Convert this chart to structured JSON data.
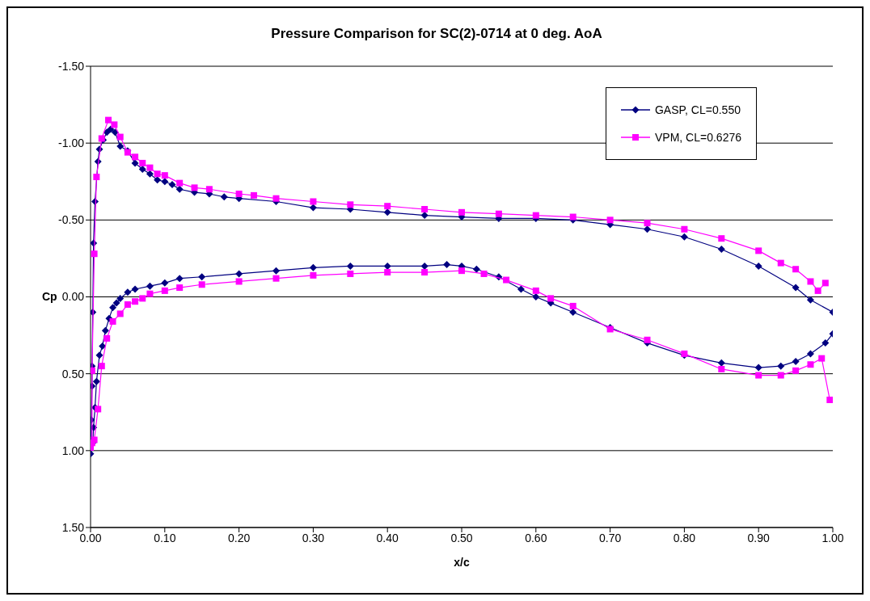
{
  "chart_data": {
    "type": "line",
    "title": "Pressure Comparison for SC(2)-0714 at 0 deg. AoA",
    "xlabel": "x/c",
    "ylabel": "Cp",
    "xlim": [
      0,
      1
    ],
    "xticks": [
      {
        "value": 0,
        "label": "0.00"
      },
      {
        "value": 0.1,
        "label": "0.10"
      },
      {
        "value": 0.2,
        "label": "0.20"
      },
      {
        "value": 0.3,
        "label": "0.30"
      },
      {
        "value": 0.4,
        "label": "0.40"
      },
      {
        "value": 0.5,
        "label": "0.50"
      },
      {
        "value": 0.6,
        "label": "0.60"
      },
      {
        "value": 0.7,
        "label": "0.70"
      },
      {
        "value": 0.8,
        "label": "0.80"
      },
      {
        "value": 0.9,
        "label": "0.90"
      },
      {
        "value": 1,
        "label": "1.00"
      }
    ],
    "ylim": [
      1.5,
      -1.5
    ],
    "yticks": [
      {
        "value": 1.5,
        "label": "1.50"
      },
      {
        "value": 1,
        "label": "1.00"
      },
      {
        "value": 0.5,
        "label": "0.50"
      },
      {
        "value": 0,
        "label": "0.00"
      },
      {
        "value": -0.5,
        "label": "-0.50"
      },
      {
        "value": -1,
        "label": "-1.00"
      },
      {
        "value": -1.5,
        "label": "-1.50"
      }
    ],
    "grid": "y",
    "legend": "top right",
    "line_style": "solid",
    "series": [
      {
        "name": "GASP, CL=0.550",
        "color": "#000080",
        "marker": "diamond",
        "x": [
          1.0,
          0.97,
          0.95,
          0.9,
          0.85,
          0.8,
          0.75,
          0.7,
          0.65,
          0.6,
          0.55,
          0.5,
          0.45,
          0.4,
          0.35,
          0.3,
          0.25,
          0.2,
          0.18,
          0.16,
          0.14,
          0.12,
          0.11,
          0.1,
          0.09,
          0.08,
          0.07,
          0.06,
          0.05,
          0.04,
          0.033,
          0.027,
          0.022,
          0.017,
          0.012,
          0.01,
          0.006,
          0.004,
          0.003,
          0.002,
          0.002,
          0.001,
          0.0,
          0.003,
          0.004,
          0.006,
          0.008,
          0.012,
          0.016,
          0.02,
          0.025,
          0.03,
          0.035,
          0.04,
          0.05,
          0.06,
          0.08,
          0.1,
          0.12,
          0.15,
          0.2,
          0.25,
          0.3,
          0.35,
          0.4,
          0.45,
          0.48,
          0.5,
          0.52,
          0.55,
          0.58,
          0.6,
          0.62,
          0.65,
          0.7,
          0.75,
          0.8,
          0.85,
          0.9,
          0.93,
          0.95,
          0.97,
          0.99,
          1.0
        ],
        "values": [
          0.1,
          0.02,
          -0.06,
          -0.2,
          -0.31,
          -0.39,
          -0.44,
          -0.47,
          -0.5,
          -0.51,
          -0.51,
          -0.52,
          -0.53,
          -0.55,
          -0.57,
          -0.58,
          -0.62,
          -0.64,
          -0.65,
          -0.67,
          -0.68,
          -0.7,
          -0.73,
          -0.75,
          -0.76,
          -0.8,
          -0.83,
          -0.87,
          -0.95,
          -0.98,
          -1.07,
          -1.09,
          -1.07,
          -1.02,
          -0.96,
          -0.88,
          -0.62,
          -0.35,
          0.1,
          0.45,
          0.58,
          0.8,
          1.02,
          0.95,
          0.85,
          0.72,
          0.55,
          0.38,
          0.32,
          0.22,
          0.14,
          0.07,
          0.04,
          0.01,
          -0.03,
          -0.05,
          -0.07,
          -0.09,
          -0.12,
          -0.13,
          -0.15,
          -0.17,
          -0.19,
          -0.2,
          -0.2,
          -0.2,
          -0.21,
          -0.2,
          -0.18,
          -0.13,
          -0.05,
          0.0,
          0.04,
          0.1,
          0.2,
          0.3,
          0.38,
          0.43,
          0.46,
          0.45,
          0.42,
          0.37,
          0.3,
          0.24
        ]
      },
      {
        "name": "VPM, CL=0.6276",
        "color": "#ff00ff",
        "marker": "square",
        "x": [
          0.99,
          0.98,
          0.97,
          0.95,
          0.93,
          0.9,
          0.85,
          0.8,
          0.75,
          0.7,
          0.65,
          0.6,
          0.55,
          0.5,
          0.45,
          0.4,
          0.35,
          0.3,
          0.25,
          0.22,
          0.2,
          0.16,
          0.14,
          0.12,
          0.1,
          0.09,
          0.08,
          0.07,
          0.06,
          0.05,
          0.04,
          0.032,
          0.024,
          0.015,
          0.008,
          0.005,
          0.002,
          0.002,
          0.0,
          0.005,
          0.01,
          0.015,
          0.022,
          0.03,
          0.04,
          0.05,
          0.06,
          0.07,
          0.08,
          0.1,
          0.12,
          0.15,
          0.2,
          0.25,
          0.3,
          0.35,
          0.4,
          0.45,
          0.5,
          0.53,
          0.56,
          0.6,
          0.62,
          0.65,
          0.7,
          0.75,
          0.8,
          0.85,
          0.9,
          0.93,
          0.95,
          0.97,
          0.985,
          0.996
        ],
        "values": [
          -0.09,
          -0.04,
          -0.1,
          -0.18,
          -0.22,
          -0.3,
          -0.38,
          -0.44,
          -0.48,
          -0.5,
          -0.52,
          -0.53,
          -0.54,
          -0.55,
          -0.57,
          -0.59,
          -0.6,
          -0.62,
          -0.64,
          -0.66,
          -0.67,
          -0.7,
          -0.71,
          -0.74,
          -0.79,
          -0.8,
          -0.84,
          -0.87,
          -0.91,
          -0.94,
          -1.04,
          -1.12,
          -1.15,
          -1.03,
          -0.78,
          -0.28,
          0.48,
          0.95,
          0.98,
          0.93,
          0.73,
          0.45,
          0.27,
          0.16,
          0.11,
          0.05,
          0.03,
          0.01,
          -0.02,
          -0.04,
          -0.06,
          -0.08,
          -0.1,
          -0.12,
          -0.14,
          -0.15,
          -0.16,
          -0.16,
          -0.17,
          -0.15,
          -0.11,
          -0.04,
          0.01,
          0.06,
          0.21,
          0.28,
          0.37,
          0.47,
          0.51,
          0.51,
          0.48,
          0.44,
          0.4,
          0.67
        ]
      }
    ]
  }
}
